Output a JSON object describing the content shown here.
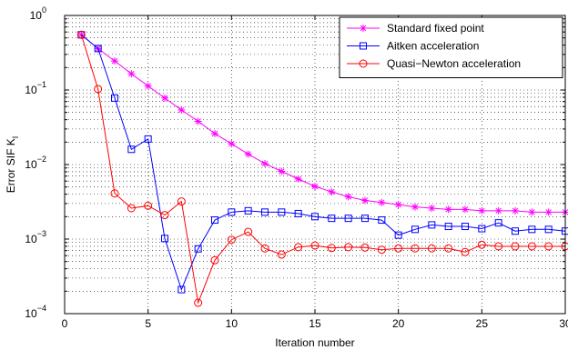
{
  "chart_data": {
    "type": "line",
    "title": "",
    "xlabel": "Iteration number",
    "ylabel": "Error SIF K",
    "ylabel_subscript": "I",
    "xscale": "linear",
    "yscale": "log",
    "xlim": [
      0,
      30
    ],
    "ylim": [
      0.0001,
      1
    ],
    "xticks": [
      0,
      5,
      10,
      15,
      20,
      25,
      30
    ],
    "xtick_labels": [
      "0",
      "5",
      "10",
      "15",
      "20",
      "25",
      "30"
    ],
    "yticks": [
      0.0001,
      0.001,
      0.01,
      0.1,
      1
    ],
    "ytick_base": "10",
    "ytick_exponents": [
      "−4",
      "−3",
      "−2",
      "−1",
      "0"
    ],
    "grid": true,
    "legend_position": "top-right",
    "series": [
      {
        "name": "Standard fixed point",
        "color": "#ff00ff",
        "marker": "asterisk",
        "x": [
          1,
          2,
          3,
          4,
          5,
          6,
          7,
          8,
          9,
          10,
          11,
          12,
          13,
          14,
          15,
          16,
          17,
          18,
          19,
          20,
          21,
          22,
          23,
          24,
          25,
          26,
          27,
          28,
          29,
          30
        ],
        "y": [
          0.55,
          0.36,
          0.245,
          0.165,
          0.113,
          0.078,
          0.054,
          0.038,
          0.026,
          0.019,
          0.0138,
          0.0103,
          0.0081,
          0.0064,
          0.0051,
          0.0043,
          0.0037,
          0.0033,
          0.0031,
          0.0029,
          0.0027,
          0.0026,
          0.0025,
          0.0025,
          0.0024,
          0.0024,
          0.0024,
          0.0023,
          0.0023,
          0.0023
        ]
      },
      {
        "name": "Aitken acceleration",
        "color": "#0000ff",
        "marker": "square",
        "x": [
          1,
          2,
          3,
          4,
          5,
          6,
          7,
          8,
          9,
          10,
          11,
          12,
          13,
          14,
          15,
          16,
          17,
          18,
          19,
          20,
          21,
          22,
          23,
          24,
          25,
          26,
          27,
          28,
          29,
          30
        ],
        "y": [
          0.55,
          0.36,
          0.078,
          0.016,
          0.022,
          0.00102,
          0.00021,
          0.00074,
          0.0018,
          0.0023,
          0.0024,
          0.0023,
          0.0023,
          0.0022,
          0.002,
          0.0019,
          0.0019,
          0.0019,
          0.0018,
          0.00113,
          0.00135,
          0.00155,
          0.00148,
          0.00148,
          0.00138,
          0.00165,
          0.00128,
          0.00135,
          0.00135,
          0.00128
        ]
      },
      {
        "name": "Quasi−Newton acceleration",
        "color": "#ff0000",
        "marker": "circle",
        "x": [
          1,
          2,
          3,
          4,
          5,
          6,
          7,
          8,
          9,
          10,
          11,
          12,
          13,
          14,
          15,
          16,
          17,
          18,
          19,
          20,
          21,
          22,
          23,
          24,
          25,
          26,
          27,
          28,
          29,
          30
        ],
        "y": [
          0.55,
          0.103,
          0.0041,
          0.0026,
          0.0028,
          0.0021,
          0.0032,
          0.00014,
          0.00052,
          0.00098,
          0.00125,
          0.00075,
          0.00062,
          0.00078,
          0.00082,
          0.00076,
          0.00078,
          0.00077,
          0.00072,
          0.00075,
          0.00075,
          0.00075,
          0.00075,
          0.00067,
          0.00084,
          0.0008,
          0.0008,
          0.0008,
          0.0008,
          0.0008
        ]
      }
    ]
  }
}
